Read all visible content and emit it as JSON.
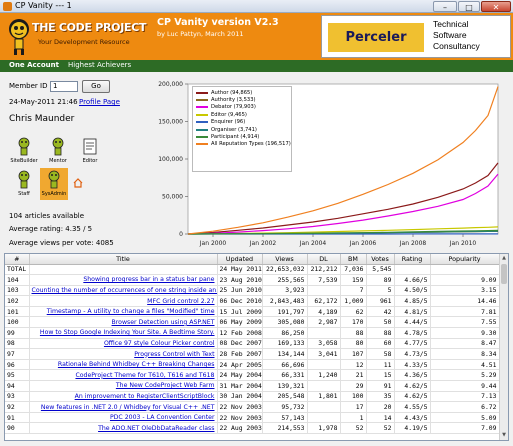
{
  "window": {
    "title": "CP Vanity --- 1",
    "minimize": "–",
    "maximize": "□",
    "close": "✕"
  },
  "banner": {
    "logo_text": "THE CODE PROJECT",
    "logo_sub": "Your Development Resource",
    "app_title": "CP Vanity version V2.3",
    "app_credit": "by Luc Pattyn, March 2011",
    "ad_logo": "Perceler",
    "ad_line1": "Technical",
    "ad_line2": "Software",
    "ad_line3": "Consultancy"
  },
  "tabs": [
    {
      "label": "One Account",
      "active": true
    },
    {
      "label": "Highest Achievers",
      "active": false
    }
  ],
  "left": {
    "member_id_label": "Member ID",
    "member_id_value": "1",
    "go_label": "Go",
    "date": "24-May-2011 21:46",
    "profile_link": "Profile Page",
    "member_name": "Chris Maunder",
    "badges": [
      {
        "label": "SiteBuilder",
        "icon": "sitebuilder-badge-icon"
      },
      {
        "label": "Mentor",
        "icon": "mentor-badge-icon"
      },
      {
        "label": "Editor",
        "icon": "editor-badge-icon"
      },
      {
        "label": "Staff",
        "icon": "staff-badge-icon"
      },
      {
        "label": "SysAdmin",
        "icon": "sysadmin-badge-icon"
      }
    ],
    "home_icon": "home-icon",
    "articles_available": "104 articles available",
    "average_rating": "Average rating: 4.35 / 5",
    "average_views": "Average views per vote: 4085"
  },
  "chart_data": {
    "type": "line",
    "title": "",
    "xlabel": "",
    "ylabel": "",
    "ylim": [
      0,
      200000
    ],
    "yticks": [
      "0",
      "50,000",
      "100,000",
      "150,000",
      "200,000"
    ],
    "xticks": [
      "Jan 2000",
      "Jan 2002",
      "Jan 2004",
      "Jan 2006",
      "Jan 2008",
      "Jan 2010"
    ],
    "x_years": [
      1999.0,
      2000.0,
      2001.0,
      2002.0,
      2003.0,
      2004.0,
      2005.0,
      2006.0,
      2007.0,
      2008.0,
      2009.0,
      2010.0,
      2010.5,
      2011.0,
      2011.4
    ],
    "legend_position": "top-left",
    "series": [
      {
        "name": "Author (94,865)",
        "color": "#8b1a1a",
        "values": [
          0,
          2000,
          5000,
          8000,
          12000,
          16000,
          21000,
          27000,
          33000,
          40000,
          49000,
          60000,
          68000,
          78000,
          94865
        ]
      },
      {
        "name": "Authority (3,533)",
        "color": "#8a6a20",
        "values": [
          0,
          100,
          200,
          300,
          500,
          700,
          1000,
          1300,
          1700,
          2100,
          2500,
          3000,
          3200,
          3400,
          3533
        ]
      },
      {
        "name": "Debator (79,903)",
        "color": "#e000e0",
        "values": [
          0,
          1000,
          2500,
          4500,
          7000,
          10000,
          14000,
          18500,
          24000,
          30000,
          37000,
          46000,
          54000,
          64000,
          79903
        ]
      },
      {
        "name": "Editor (9,465)",
        "color": "#c8c800",
        "values": [
          0,
          300,
          700,
          1200,
          1800,
          2500,
          3300,
          4100,
          5000,
          5900,
          6900,
          7900,
          8500,
          9000,
          9465
        ]
      },
      {
        "name": "Enquirer (96)",
        "color": "#3060c0",
        "values": [
          0,
          5,
          10,
          20,
          30,
          40,
          50,
          55,
          60,
          70,
          75,
          80,
          85,
          90,
          96
        ]
      },
      {
        "name": "Organiser (3,741)",
        "color": "#208080",
        "values": [
          0,
          100,
          250,
          400,
          600,
          800,
          1100,
          1400,
          1800,
          2200,
          2700,
          3100,
          3300,
          3500,
          3741
        ]
      },
      {
        "name": "Participant (4,914)",
        "color": "#3a8a3a",
        "values": [
          0,
          150,
          300,
          500,
          750,
          1000,
          1400,
          1800,
          2300,
          2800,
          3400,
          4000,
          4300,
          4600,
          4914
        ]
      },
      {
        "name": "All Reputation Types (196,517)",
        "color": "#f08020",
        "values": [
          0,
          3800,
          9000,
          15000,
          22500,
          31000,
          41000,
          53000,
          66000,
          81000,
          99000,
          122000,
          138000,
          158000,
          196517
        ]
      }
    ]
  },
  "table": {
    "columns": [
      "#",
      "Title",
      "Updated",
      "Views",
      "DL",
      "BM",
      "Votes",
      "Rating",
      "Popularity"
    ],
    "rows": [
      [
        "TOTAL",
        "",
        "24 May 2011",
        "22,653,032",
        "212,212",
        "7,036",
        "5,545",
        "",
        ""
      ],
      [
        "104",
        "Showing progress bar in a status bar pane",
        "23 Aug 2010",
        "255,565",
        "7,539",
        "159",
        "89",
        "4.66/5",
        "9.09"
      ],
      [
        "103",
        "Counting the number of occurrences of one string inside an...",
        "25 Jun 2010",
        "3,923",
        "",
        "7",
        "5",
        "4.50/5",
        "3.15"
      ],
      [
        "102",
        "MFC Grid control 2.27",
        "06 Dec 2010",
        "2,843,483",
        "62,172",
        "1,009",
        "961",
        "4.85/5",
        "14.46"
      ],
      [
        "101",
        "Timestamp - A utility to change a files \"Modified\" time",
        "15 Jul 2009",
        "191,797",
        "4,189",
        "62",
        "42",
        "4.81/5",
        "7.81"
      ],
      [
        "100",
        "Browser Detection using ASP.NET",
        "06 May 2009",
        "305,080",
        "2,987",
        "170",
        "50",
        "4.44/5",
        "7.55"
      ],
      [
        "99",
        "How to Stop Google Indexing Your Site. A Bedtime Story.",
        "12 Feb 2008",
        "86,250",
        "",
        "88",
        "88",
        "4.78/5",
        "9.30"
      ],
      [
        "98",
        "Office 97 style Colour Picker control",
        "08 Dec 2007",
        "169,133",
        "3,058",
        "80",
        "60",
        "4.77/5",
        "8.47"
      ],
      [
        "97",
        "Progress Control with Text",
        "28 Feb 2007",
        "134,144",
        "3,041",
        "107",
        "58",
        "4.73/5",
        "8.34"
      ],
      [
        "96",
        "Rationale Behind Whidbey C++ Breaking Changes",
        "24 Apr 2005",
        "66,696",
        "",
        "12",
        "11",
        "4.33/5",
        "4.51"
      ],
      [
        "95",
        "CodeProject Theme for T610, T616 and T618",
        "24 May 2004",
        "66,331",
        "1,240",
        "21",
        "15",
        "4.36/5",
        "5.29"
      ],
      [
        "94",
        "The New CodeProject Web Farm",
        "31 Mar 2004",
        "139,321",
        "",
        "29",
        "91",
        "4.62/5",
        "9.44"
      ],
      [
        "93",
        "An improvement to RegisterClientScriptBlock",
        "30 Jan 2004",
        "205,548",
        "1,801",
        "100",
        "35",
        "4.62/5",
        "7.13"
      ],
      [
        "92",
        "New features in .NET 2.0 / Whidbey for Visual C++ .NET",
        "22 Nov 2003",
        "95,732",
        "",
        "17",
        "20",
        "4.55/5",
        "6.72"
      ],
      [
        "91",
        "PDC 2003 - LA Convention Center",
        "22 Nov 2003",
        "57,143",
        "",
        "1",
        "14",
        "4.43/5",
        "5.09"
      ],
      [
        "90",
        "The ADO.NET OleDbDataReader class",
        "22 Aug 2003",
        "214,553",
        "1,978",
        "52",
        "52",
        "4.19/5",
        "7.09"
      ]
    ]
  }
}
